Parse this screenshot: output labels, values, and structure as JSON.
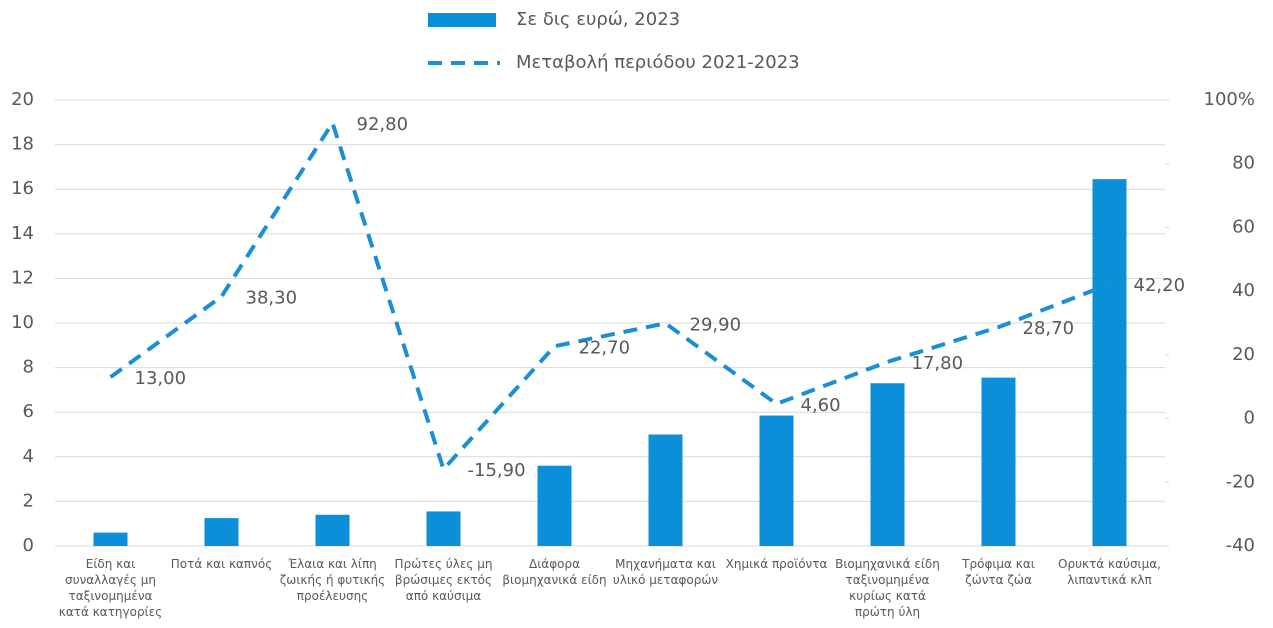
{
  "chart_data": {
    "type": "bar_line",
    "categories": [
      "Είδη και συναλλαγές μη ταξινομημένα κατά κατηγορίες",
      "Ποτά και καπνός",
      "Έλαια και λίπη ζωικής ή φυτικής προέλευσης",
      "Πρώτες ύλες μη βρώσιμες εκτός από καύσιμα",
      "Διάφορα βιομηχανικά είδη",
      "Μηχανήματα και υλικό μεταφορών",
      "Χημικά προϊόντα",
      "Βιομηχανικά είδη ταξινομημένα κυρίως κατά πρώτη ύλη",
      "Τρόφιμα και ζώντα ζώα",
      "Ορυκτά καύσιμα, λιπαντικά κλπ"
    ],
    "series": [
      {
        "name": "Σε δις ευρώ, 2023",
        "color": "#0a8fd8",
        "values": [
          0.6,
          1.25,
          1.4,
          1.55,
          3.6,
          5.0,
          5.85,
          7.3,
          7.55,
          16.45
        ]
      },
      {
        "name": "Μεταβολή περιόδου 2021-2023",
        "color": "#1a8fd6",
        "axis": "y2",
        "values": [
          13.0,
          38.3,
          92.8,
          -15.9,
          22.7,
          29.9,
          4.6,
          17.8,
          28.7,
          42.2
        ],
        "value_labels": [
          "13,00",
          "38,30",
          "92,80",
          "-15,90",
          "22,70",
          "29,90",
          "4,60",
          "17,80",
          "28,70",
          "42,20"
        ]
      }
    ],
    "ylim": [
      0,
      20
    ],
    "yticks": [
      0,
      2,
      4,
      6,
      8,
      10,
      12,
      14,
      16,
      18,
      20
    ],
    "y2lim": [
      -40,
      100
    ],
    "y2ticks": [
      -40,
      -20,
      0,
      20,
      40,
      60,
      80,
      {
        "value": 100,
        "label": "100%"
      }
    ],
    "grid": true
  }
}
